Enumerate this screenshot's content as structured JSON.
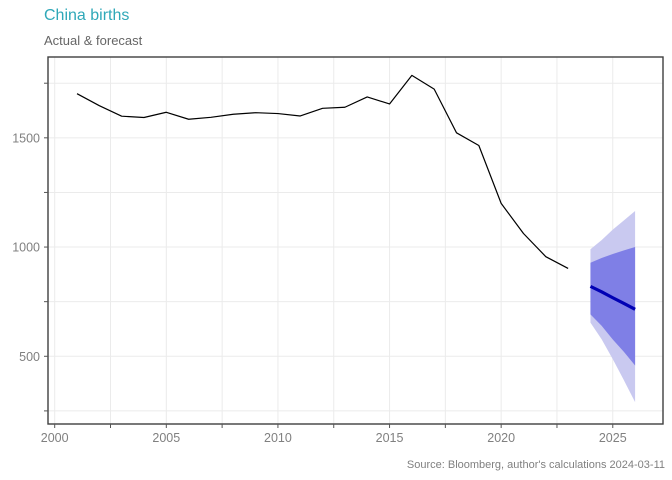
{
  "chart": {
    "title": "China births",
    "subtitle": "Actual & forecast",
    "source": "Source: Bloomberg, author's calculations 2024-03-11",
    "colors": {
      "title": "#2fa8b8",
      "subtitle": "#666666",
      "axis_label": "#808080",
      "source": "#808080",
      "border": "#3f3f3f",
      "tick": "#555555",
      "grid": "#ebebeb",
      "background": "#ffffff"
    }
  },
  "chart_data": {
    "type": "line",
    "title": "China births",
    "subtitle": "Actual & forecast",
    "xlabel": "",
    "ylabel": "",
    "xlim": [
      1999.7,
      2027.25
    ],
    "ylim": [
      190,
      1870
    ],
    "grid": true,
    "legend": "none",
    "x_major_ticks": [
      2000,
      2005,
      2010,
      2015,
      2020,
      2025
    ],
    "x_minor_ticks": [
      2000,
      2002.5,
      2005,
      2007.5,
      2010,
      2012.5,
      2015,
      2017.5,
      2020,
      2022.5,
      2025
    ],
    "y_major_ticks": [
      500,
      1000,
      1500
    ],
    "y_minor_ticks": [
      250,
      500,
      750,
      1000,
      1250,
      1500,
      1750
    ],
    "series": [
      {
        "name": "forecast-outer-band",
        "kind": "band",
        "x": [
          2024,
          2024.5,
          2025,
          2025.5,
          2026
        ],
        "upper": [
          990,
          1032,
          1080,
          1122,
          1165
        ],
        "lower": [
          654,
          578,
          487,
          390,
          290
        ],
        "color": "#c9c9f0"
      },
      {
        "name": "forecast-inner-band",
        "kind": "band",
        "x": [
          2024,
          2024.5,
          2025,
          2025.5,
          2026
        ],
        "upper": [
          928,
          950,
          968,
          985,
          1000
        ],
        "lower": [
          692,
          640,
          577,
          520,
          458
        ],
        "color": "#7f7fe6"
      },
      {
        "name": "actual",
        "kind": "line",
        "x": [
          2001,
          2002,
          2003,
          2004,
          2005,
          2006,
          2007,
          2008,
          2009,
          2010,
          2011,
          2012,
          2013,
          2014,
          2015,
          2016,
          2017,
          2018,
          2019,
          2020,
          2021,
          2022,
          2023
        ],
        "values": [
          1702,
          1647,
          1599,
          1593,
          1617,
          1585,
          1594,
          1608,
          1615,
          1611,
          1600,
          1635,
          1640,
          1687,
          1655,
          1786,
          1723,
          1523,
          1465,
          1200,
          1062,
          956,
          902
        ],
        "color": "#000000",
        "width": 1.2
      },
      {
        "name": "forecast-median",
        "kind": "line",
        "x": [
          2024,
          2024.5,
          2025,
          2025.5,
          2026
        ],
        "values": [
          820,
          795,
          768,
          742,
          715
        ],
        "color": "#0000b4",
        "width": 3.2
      }
    ]
  }
}
